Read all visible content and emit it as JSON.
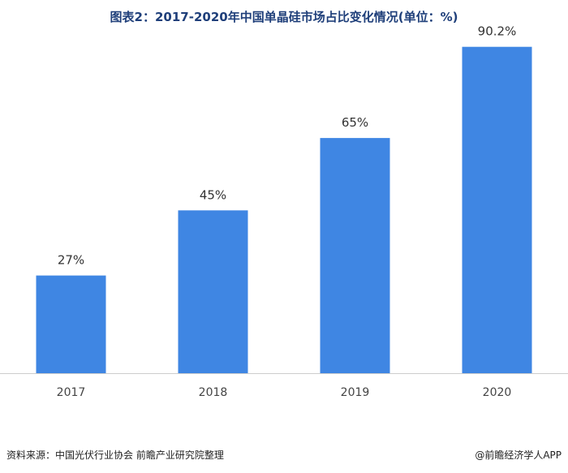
{
  "title": "图表2：2017-2020年中国单晶硅市场占比变化情况(单位：%)",
  "source": "资料来源：中国光伏行业协会 前瞻产业研究院整理",
  "brand": "@前瞻经济学人APP",
  "colors": {
    "bar": "#3f86e3",
    "title": "#1f3f7a",
    "axis": "#cccccc"
  },
  "chart_data": {
    "type": "bar",
    "title": "图表2：2017-2020年中国单晶硅市场占比变化情况(单位：%)",
    "categories": [
      "2017",
      "2018",
      "2019",
      "2020"
    ],
    "values": [
      27,
      45,
      65,
      90.2
    ],
    "value_labels": [
      "27%",
      "45%",
      "65%",
      "90.2%"
    ],
    "ylim": [
      0,
      100
    ],
    "grid": false,
    "legend": "none"
  }
}
